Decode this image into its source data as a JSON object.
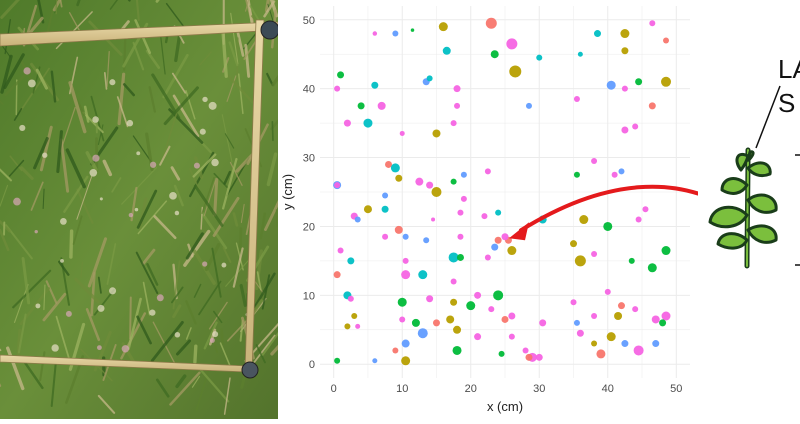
{
  "chart_data": {
    "type": "scatter",
    "title": "",
    "xlabel": "x (cm)",
    "ylabel": "y (cm)",
    "xlim": [
      -2,
      52
    ],
    "ylim": [
      -2,
      52
    ],
    "xticks": [
      0,
      10,
      20,
      30,
      40,
      50
    ],
    "yticks": [
      0,
      10,
      20,
      30,
      40,
      50
    ],
    "grid": true,
    "legend": "none",
    "palette": [
      "#f564e3",
      "#619cff",
      "#00ba38",
      "#b79f00",
      "#f8766d",
      "#00bfc4"
    ],
    "points": [
      [
        6,
        48,
        0,
        4.5
      ],
      [
        9,
        48,
        1,
        6
      ],
      [
        11.5,
        48.5,
        2,
        3.5
      ],
      [
        16,
        49,
        3,
        9
      ],
      [
        23,
        49.5,
        4,
        11
      ],
      [
        26,
        46.5,
        0,
        11
      ],
      [
        23.5,
        45,
        2,
        8
      ],
      [
        26.5,
        42.5,
        3,
        12
      ],
      [
        16.5,
        45.5,
        5,
        8
      ],
      [
        30,
        44.5,
        5,
        6
      ],
      [
        36,
        45,
        5,
        5
      ],
      [
        38.5,
        48,
        5,
        7
      ],
      [
        42.5,
        48,
        3,
        9
      ],
      [
        46.5,
        49.5,
        0,
        6
      ],
      [
        48.5,
        47,
        4,
        6
      ],
      [
        42.5,
        45.5,
        3,
        7
      ],
      [
        48.5,
        41,
        3,
        10
      ],
      [
        44.5,
        41,
        2,
        7
      ],
      [
        40.5,
        40.5,
        1,
        9
      ],
      [
        42.5,
        40,
        0,
        6
      ],
      [
        46.5,
        37.5,
        4,
        7
      ],
      [
        35.5,
        38.5,
        0,
        6
      ],
      [
        28.5,
        37.5,
        1,
        6
      ],
      [
        18,
        40,
        0,
        7
      ],
      [
        13.5,
        41,
        1,
        7
      ],
      [
        14,
        41.5,
        5,
        6
      ],
      [
        1,
        42,
        2,
        7
      ],
      [
        0.5,
        40,
        0,
        6
      ],
      [
        6,
        40.5,
        5,
        7
      ],
      [
        4,
        37.5,
        2,
        7
      ],
      [
        7,
        37.5,
        0,
        8
      ],
      [
        5,
        35,
        5,
        9
      ],
      [
        18,
        37.5,
        0,
        6
      ],
      [
        15,
        33.5,
        3,
        8
      ],
      [
        10,
        33.5,
        0,
        5
      ],
      [
        2,
        35,
        0,
        7
      ],
      [
        17.5,
        35,
        0,
        6
      ],
      [
        42.5,
        34,
        0,
        7
      ],
      [
        44,
        34.5,
        0,
        6
      ],
      [
        38,
        29.5,
        0,
        6
      ],
      [
        35.5,
        27.5,
        2,
        6
      ],
      [
        41,
        27.5,
        0,
        6
      ],
      [
        42,
        28,
        1,
        6
      ],
      [
        0.5,
        26,
        1,
        8
      ],
      [
        0.5,
        26,
        0,
        6
      ],
      [
        8,
        29,
        4,
        7
      ],
      [
        9,
        28.5,
        5,
        9
      ],
      [
        9.5,
        27,
        3,
        7
      ],
      [
        12.5,
        26.5,
        0,
        8
      ],
      [
        14,
        26,
        0,
        7
      ],
      [
        15,
        25,
        3,
        10
      ],
      [
        17.5,
        26.5,
        2,
        6
      ],
      [
        19,
        27.5,
        1,
        6
      ],
      [
        22.5,
        28,
        0,
        6
      ],
      [
        19,
        24,
        0,
        6
      ],
      [
        18.5,
        22,
        0,
        6
      ],
      [
        22,
        21.5,
        0,
        6
      ],
      [
        24,
        22,
        5,
        6
      ],
      [
        7.5,
        24.5,
        1,
        6
      ],
      [
        7.5,
        22.5,
        5,
        7
      ],
      [
        3,
        21.5,
        0,
        7
      ],
      [
        3.5,
        21,
        1,
        6
      ],
      [
        5,
        22.5,
        3,
        8
      ],
      [
        9.5,
        19.5,
        4,
        8
      ],
      [
        10.5,
        18.5,
        1,
        6
      ],
      [
        7.5,
        18.5,
        0,
        6
      ],
      [
        13.5,
        18,
        1,
        6
      ],
      [
        18.5,
        18.5,
        0,
        6
      ],
      [
        30.5,
        21,
        5,
        8
      ],
      [
        36.5,
        21,
        3,
        9
      ],
      [
        40,
        20,
        2,
        9
      ],
      [
        35,
        17.5,
        3,
        7
      ],
      [
        44.5,
        21,
        0,
        6
      ],
      [
        45.5,
        22.5,
        0,
        6
      ],
      [
        24,
        18,
        4,
        7
      ],
      [
        25.5,
        18,
        4,
        7
      ],
      [
        25,
        18.5,
        0,
        7
      ],
      [
        26,
        16.5,
        3,
        9
      ],
      [
        23.5,
        17,
        1,
        7
      ],
      [
        22.5,
        15.5,
        0,
        6
      ],
      [
        36,
        15,
        3,
        11
      ],
      [
        38,
        16,
        0,
        6
      ],
      [
        48.5,
        16.5,
        2,
        9
      ],
      [
        46.5,
        14,
        2,
        9
      ],
      [
        43.5,
        15,
        2,
        6
      ],
      [
        1,
        16.5,
        0,
        6
      ],
      [
        0.5,
        13,
        4,
        7
      ],
      [
        2.5,
        15,
        5,
        7
      ],
      [
        10.5,
        15,
        0,
        6
      ],
      [
        10.5,
        13,
        0,
        9
      ],
      [
        13,
        13,
        5,
        9
      ],
      [
        17.5,
        15.5,
        5,
        10
      ],
      [
        18.5,
        15.5,
        2,
        7
      ],
      [
        17.5,
        12,
        0,
        6
      ],
      [
        21,
        10,
        0,
        7
      ],
      [
        24,
        10,
        2,
        10
      ],
      [
        2,
        10,
        5,
        8
      ],
      [
        2.5,
        9.5,
        0,
        6
      ],
      [
        10,
        9,
        2,
        9
      ],
      [
        14,
        9.5,
        0,
        7
      ],
      [
        17.5,
        9,
        3,
        7
      ],
      [
        20,
        8.5,
        2,
        9
      ],
      [
        23,
        8,
        0,
        6
      ],
      [
        35,
        9,
        0,
        6
      ],
      [
        40,
        10.5,
        0,
        6
      ],
      [
        42,
        8.5,
        4,
        7
      ],
      [
        44,
        8,
        0,
        6
      ],
      [
        41.5,
        7,
        3,
        8
      ],
      [
        38,
        7,
        0,
        6
      ],
      [
        35.5,
        6,
        1,
        6
      ],
      [
        30.5,
        6,
        0,
        7
      ],
      [
        25,
        6.5,
        4,
        7
      ],
      [
        26,
        7,
        0,
        7
      ],
      [
        48.5,
        7,
        0,
        9
      ],
      [
        47,
        6.5,
        0,
        8
      ],
      [
        48,
        6,
        2,
        7
      ],
      [
        3,
        7,
        3,
        6
      ],
      [
        10,
        6.5,
        0,
        6
      ],
      [
        12,
        6,
        2,
        8
      ],
      [
        15,
        6,
        4,
        7
      ],
      [
        17,
        6.5,
        3,
        8
      ],
      [
        2,
        5.5,
        3,
        6
      ],
      [
        3.5,
        5.5,
        0,
        5
      ],
      [
        13,
        4.5,
        1,
        10
      ],
      [
        18,
        5,
        3,
        8
      ],
      [
        21,
        4,
        0,
        7
      ],
      [
        26,
        4,
        0,
        6
      ],
      [
        36,
        4.5,
        0,
        7
      ],
      [
        38,
        3,
        3,
        6
      ],
      [
        40.5,
        4,
        3,
        9
      ],
      [
        42.5,
        3,
        1,
        7
      ],
      [
        47,
        3,
        1,
        7
      ],
      [
        10.5,
        3,
        1,
        8
      ],
      [
        9,
        2,
        4,
        6
      ],
      [
        18,
        2,
        2,
        9
      ],
      [
        24.5,
        1.5,
        2,
        6
      ],
      [
        28,
        2,
        0,
        6
      ],
      [
        39,
        1.5,
        4,
        9
      ],
      [
        44.5,
        2,
        0,
        10
      ],
      [
        6,
        0.5,
        1,
        5
      ],
      [
        10.5,
        0.5,
        3,
        9
      ],
      [
        29,
        1,
        0,
        9
      ],
      [
        28.5,
        1,
        4,
        7
      ],
      [
        30,
        1,
        0,
        7
      ],
      [
        0.5,
        0.5,
        2,
        6
      ],
      [
        14.5,
        21,
        0,
        4
      ]
    ]
  },
  "right_panel": {
    "cut_text": [
      "LA",
      "S"
    ]
  }
}
